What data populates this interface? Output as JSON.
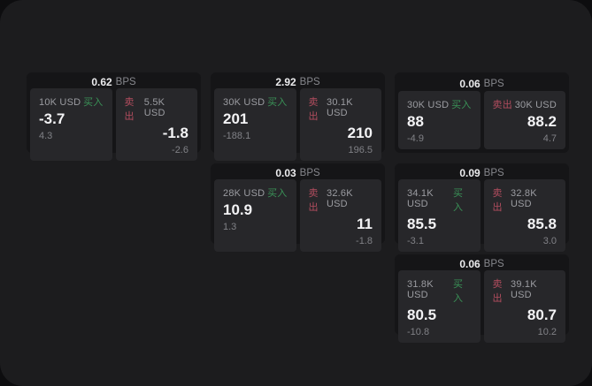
{
  "colors": {
    "buy_green": "#3a9257",
    "sell_red": "#b34d5f",
    "backdrop": "#0d0d0f",
    "panel": "#1c1c1e",
    "card": "#151517",
    "side_panel": "#27272a"
  },
  "bps_unit_label": "BPS",
  "cards": [
    {
      "col": 1,
      "row": 1,
      "bps_value": "0.62",
      "buy": {
        "amount": "10K USD",
        "side_label": "买入",
        "price": "-3.7",
        "delta": "4.3"
      },
      "sell": {
        "side_label": "卖出",
        "amount": "5.5K USD",
        "price": "-1.8",
        "delta": "-2.6"
      }
    },
    {
      "col": 2,
      "row": 1,
      "bps_value": "2.92",
      "buy": {
        "amount": "30K USD",
        "side_label": "买入",
        "price": "201",
        "delta": "-188.1"
      },
      "sell": {
        "side_label": "卖出",
        "amount": "30.1K USD",
        "price": "210",
        "delta": "196.5"
      }
    },
    {
      "col": 3,
      "row": 1,
      "bps_value": "0.06",
      "buy": {
        "amount": "30K USD",
        "side_label": "买入",
        "price": "88",
        "delta": "-4.9"
      },
      "sell": {
        "side_label": "卖出",
        "amount": "30K USD",
        "price": "88.2",
        "delta": "4.7"
      }
    },
    {
      "col": 2,
      "row": 2,
      "bps_value": "0.03",
      "buy": {
        "amount": "28K USD",
        "side_label": "买入",
        "price": "10.9",
        "delta": "1.3"
      },
      "sell": {
        "side_label": "卖出",
        "amount": "32.6K USD",
        "price": "11",
        "delta": "-1.8"
      }
    },
    {
      "col": 3,
      "row": 2,
      "bps_value": "0.09",
      "buy": {
        "amount": "34.1K USD",
        "side_label": "买入",
        "price": "85.5",
        "delta": "-3.1"
      },
      "sell": {
        "side_label": "卖出",
        "amount": "32.8K USD",
        "price": "85.8",
        "delta": "3.0"
      }
    },
    {
      "col": 3,
      "row": 3,
      "bps_value": "0.06",
      "buy": {
        "amount": "31.8K USD",
        "side_label": "买入",
        "price": "80.5",
        "delta": "-10.8"
      },
      "sell": {
        "side_label": "卖出",
        "amount": "39.1K USD",
        "price": "80.7",
        "delta": "10.2"
      }
    }
  ]
}
